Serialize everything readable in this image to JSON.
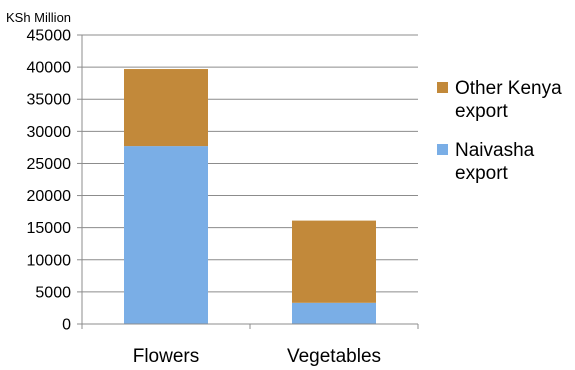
{
  "chart_data": {
    "type": "bar",
    "stacked": true,
    "unit_label": "KSh Million",
    "categories": [
      "Flowers",
      "Vegetables"
    ],
    "series": [
      {
        "name": "Naivasha export",
        "color": "#7aaee6",
        "values": [
          27700,
          3300
        ]
      },
      {
        "name": "Other Kenya export",
        "color": "#c2893a",
        "values": [
          12000,
          12800
        ]
      }
    ],
    "legend_order": [
      1,
      0
    ],
    "ylim": [
      0,
      45000
    ],
    "yticks": [
      0,
      5000,
      10000,
      15000,
      20000,
      25000,
      30000,
      35000,
      40000,
      45000
    ],
    "grid": true,
    "legend_position": "right"
  }
}
